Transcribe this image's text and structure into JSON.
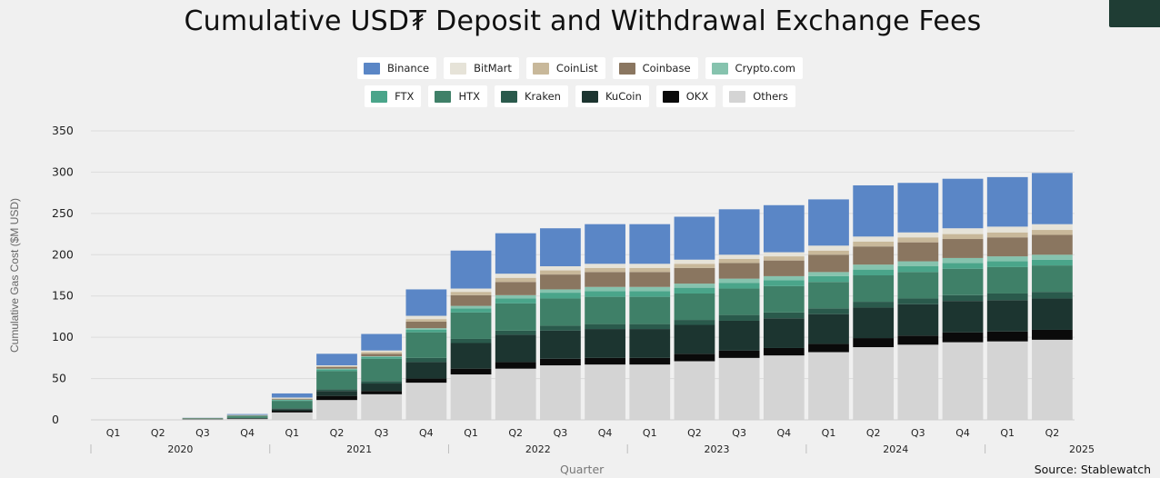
{
  "title": "Cumulative USD₮ Deposit and Withdrawal Exchange Fees",
  "source": "Source:  Stablewatch",
  "chart_data": {
    "type": "bar",
    "stacked": true,
    "title": "Cumulative USD₮ Deposit and Withdrawal Exchange Fees",
    "xlabel": "Quarter",
    "ylabel": "Cumulative Gas Cost ($M USD)",
    "ylim": [
      0,
      350
    ],
    "yticks": [
      "0",
      "50",
      "100",
      "150",
      "200",
      "250",
      "300",
      "350"
    ],
    "grid": true,
    "legend_position": "top",
    "categories": [
      "Q1",
      "Q2",
      "Q3",
      "Q4",
      "Q1",
      "Q2",
      "Q3",
      "Q4",
      "Q1",
      "Q2",
      "Q3",
      "Q4",
      "Q1",
      "Q2",
      "Q3",
      "Q4",
      "Q1",
      "Q2",
      "Q3",
      "Q4",
      "Q1",
      "Q2"
    ],
    "year_groups": [
      {
        "label": "2020",
        "count": 4
      },
      {
        "label": "2021",
        "count": 4
      },
      {
        "label": "2022",
        "count": 4
      },
      {
        "label": "2023",
        "count": 4
      },
      {
        "label": "2024",
        "count": 4
      },
      {
        "label": "2025",
        "count": 2
      }
    ],
    "series": [
      {
        "name": "Others",
        "color": "#d4d4d4",
        "values": [
          0,
          0,
          0.5,
          1,
          9,
          24,
          31,
          45,
          55,
          62,
          66,
          67,
          67,
          71,
          75,
          78,
          82,
          88,
          91,
          94,
          95,
          97
        ]
      },
      {
        "name": "OKX",
        "color": "#0a0a0a",
        "values": [
          0,
          0,
          0.3,
          0.5,
          2,
          5,
          4,
          5,
          7,
          8,
          8,
          8,
          8,
          9,
          9,
          9,
          10,
          11,
          11,
          12,
          12,
          12
        ]
      },
      {
        "name": "KuCoin",
        "color": "#1c3530",
        "values": [
          0,
          0,
          0.2,
          0.5,
          2,
          6,
          9,
          20,
          31,
          33,
          34,
          35,
          35,
          35,
          36,
          36,
          36,
          37,
          38,
          38,
          38,
          38
        ]
      },
      {
        "name": "Kraken",
        "color": "#2a5a4c",
        "values": [
          0,
          0,
          0.1,
          0.3,
          1,
          2,
          3,
          5,
          5,
          5,
          6,
          6,
          6,
          6,
          7,
          7,
          7,
          7,
          7,
          7,
          8,
          8
        ]
      },
      {
        "name": "HTX",
        "color": "#3f8068",
        "values": [
          0,
          0,
          0.6,
          2,
          9,
          22,
          27,
          31,
          32,
          33,
          33,
          33,
          33,
          32,
          32,
          32,
          32,
          32,
          32,
          32,
          32,
          32
        ]
      },
      {
        "name": "FTX",
        "color": "#4aa58a",
        "values": [
          0,
          0,
          0.1,
          0.5,
          1,
          2,
          2,
          3,
          5,
          6,
          7,
          7,
          7,
          7,
          7,
          7,
          7,
          7,
          7,
          7,
          7,
          7
        ]
      },
      {
        "name": "Crypto.com",
        "color": "#86c3ae",
        "values": [
          0,
          0,
          0.1,
          0.2,
          0.5,
          1,
          1,
          2,
          3,
          4,
          4,
          5,
          5,
          5,
          5,
          5,
          5,
          6,
          6,
          6,
          6,
          6
        ]
      },
      {
        "name": "Coinbase",
        "color": "#8a7660",
        "values": [
          0,
          0,
          0.3,
          0.5,
          1,
          2,
          3,
          8,
          13,
          16,
          18,
          18,
          18,
          19,
          19,
          19,
          21,
          22,
          23,
          23,
          23,
          24
        ]
      },
      {
        "name": "CoinList",
        "color": "#c8b89a",
        "values": [
          0,
          0,
          0.1,
          0.2,
          0.5,
          1,
          2,
          3,
          4,
          5,
          5,
          5,
          5,
          5,
          5,
          5,
          5,
          6,
          6,
          6,
          6,
          6
        ]
      },
      {
        "name": "BitMart",
        "color": "#e6e3d8",
        "values": [
          0,
          0,
          0.1,
          0.3,
          1,
          1,
          2,
          4,
          4,
          5,
          5,
          5,
          5,
          5,
          5,
          5,
          6,
          6,
          6,
          7,
          7,
          7
        ]
      },
      {
        "name": "Binance",
        "color": "#5a86c6",
        "values": [
          0,
          0,
          0.2,
          1,
          5,
          14,
          20,
          32,
          46,
          49,
          46,
          48,
          48,
          52,
          55,
          57,
          56,
          62,
          60,
          60,
          60,
          62
        ]
      }
    ],
    "legend_rows": [
      [
        "Binance",
        "BitMart",
        "CoinList",
        "Coinbase",
        "Crypto.com"
      ],
      [
        "FTX",
        "HTX",
        "Kraken",
        "KuCoin",
        "OKX",
        "Others"
      ]
    ]
  }
}
